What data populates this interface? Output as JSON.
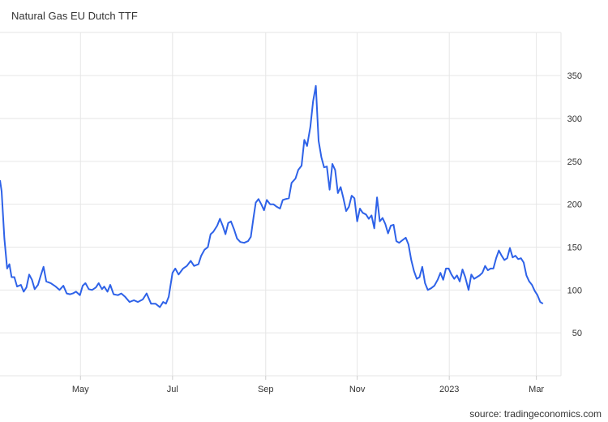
{
  "chart_data": {
    "type": "line",
    "title": "Natural Gas EU Dutch TTF",
    "xlabel": "",
    "ylabel": "",
    "source": "source: tradingeconomics.com",
    "x_range": [
      0,
      100
    ],
    "ylim": [
      0,
      400
    ],
    "y_ticks": [
      50,
      100,
      150,
      200,
      250,
      300,
      350
    ],
    "x_ticks": [
      {
        "label": "May",
        "x": 14.6
      },
      {
        "label": "Jul",
        "x": 31.3
      },
      {
        "label": "Sep",
        "x": 48.2
      },
      {
        "label": "Nov",
        "x": 64.8
      },
      {
        "label": "2023",
        "x": 81.5
      },
      {
        "label": "Mar",
        "x": 97.3
      }
    ],
    "grid": true,
    "colors": {
      "line": "#2e62e8",
      "grid": "#e6e6e6"
    },
    "series": [
      {
        "values": [
          [
            0.0,
            228
          ],
          [
            0.3,
            215
          ],
          [
            0.8,
            160
          ],
          [
            1.3,
            125
          ],
          [
            1.7,
            130
          ],
          [
            2.1,
            115
          ],
          [
            2.6,
            115
          ],
          [
            3.1,
            104
          ],
          [
            3.8,
            106
          ],
          [
            4.3,
            98
          ],
          [
            4.8,
            103
          ],
          [
            5.3,
            118
          ],
          [
            5.8,
            112
          ],
          [
            6.3,
            101
          ],
          [
            6.9,
            106
          ],
          [
            7.4,
            117
          ],
          [
            7.9,
            127
          ],
          [
            8.4,
            110
          ],
          [
            9.2,
            108
          ],
          [
            10.1,
            104
          ],
          [
            10.8,
            100
          ],
          [
            11.5,
            105
          ],
          [
            12.1,
            96
          ],
          [
            12.7,
            95
          ],
          [
            13.2,
            96
          ],
          [
            13.8,
            98
          ],
          [
            14.5,
            94
          ],
          [
            15.0,
            105
          ],
          [
            15.5,
            108
          ],
          [
            16.1,
            101
          ],
          [
            16.7,
            100
          ],
          [
            17.4,
            103
          ],
          [
            17.9,
            108
          ],
          [
            18.5,
            101
          ],
          [
            18.9,
            104
          ],
          [
            19.5,
            98
          ],
          [
            20.0,
            106
          ],
          [
            20.6,
            95
          ],
          [
            21.4,
            94
          ],
          [
            22.0,
            96
          ],
          [
            22.7,
            92
          ],
          [
            23.5,
            86
          ],
          [
            24.3,
            88
          ],
          [
            25.0,
            86
          ],
          [
            25.9,
            89
          ],
          [
            26.6,
            96
          ],
          [
            27.4,
            84
          ],
          [
            28.2,
            84
          ],
          [
            29.0,
            80
          ],
          [
            29.6,
            86
          ],
          [
            30.1,
            84
          ],
          [
            30.6,
            92
          ],
          [
            31.3,
            120
          ],
          [
            31.8,
            125
          ],
          [
            32.4,
            118
          ],
          [
            33.2,
            125
          ],
          [
            33.9,
            128
          ],
          [
            34.6,
            134
          ],
          [
            35.2,
            128
          ],
          [
            36.0,
            130
          ],
          [
            36.5,
            140
          ],
          [
            37.1,
            147
          ],
          [
            37.7,
            150
          ],
          [
            38.2,
            165
          ],
          [
            38.7,
            168
          ],
          [
            39.4,
            175
          ],
          [
            39.9,
            183
          ],
          [
            40.4,
            175
          ],
          [
            40.9,
            165
          ],
          [
            41.4,
            178
          ],
          [
            41.9,
            180
          ],
          [
            42.5,
            170
          ],
          [
            43.0,
            160
          ],
          [
            43.6,
            156
          ],
          [
            44.3,
            155
          ],
          [
            45.0,
            157
          ],
          [
            45.5,
            162
          ],
          [
            46.0,
            185
          ],
          [
            46.4,
            202
          ],
          [
            46.9,
            206
          ],
          [
            47.4,
            200
          ],
          [
            47.9,
            193
          ],
          [
            48.4,
            205
          ],
          [
            49.0,
            200
          ],
          [
            49.6,
            200
          ],
          [
            50.2,
            197
          ],
          [
            50.8,
            195
          ],
          [
            51.3,
            205
          ],
          [
            51.8,
            206
          ],
          [
            52.4,
            207
          ],
          [
            52.9,
            225
          ],
          [
            53.6,
            230
          ],
          [
            54.1,
            240
          ],
          [
            54.7,
            245
          ],
          [
            55.2,
            275
          ],
          [
            55.7,
            268
          ],
          [
            56.3,
            290
          ],
          [
            56.8,
            320
          ],
          [
            57.3,
            338
          ],
          [
            57.8,
            274
          ],
          [
            58.3,
            255
          ],
          [
            58.8,
            243
          ],
          [
            59.3,
            244
          ],
          [
            59.8,
            217
          ],
          [
            60.3,
            247
          ],
          [
            60.8,
            240
          ],
          [
            61.3,
            213
          ],
          [
            61.8,
            220
          ],
          [
            62.3,
            207
          ],
          [
            62.8,
            192
          ],
          [
            63.3,
            197
          ],
          [
            63.8,
            210
          ],
          [
            64.3,
            207
          ],
          [
            64.8,
            180
          ],
          [
            65.3,
            195
          ],
          [
            65.8,
            190
          ],
          [
            66.4,
            188
          ],
          [
            66.9,
            183
          ],
          [
            67.4,
            187
          ],
          [
            67.9,
            172
          ],
          [
            68.4,
            208
          ],
          [
            68.9,
            180
          ],
          [
            69.4,
            184
          ],
          [
            69.9,
            177
          ],
          [
            70.4,
            166
          ],
          [
            70.9,
            175
          ],
          [
            71.4,
            176
          ],
          [
            71.9,
            157
          ],
          [
            72.4,
            155
          ],
          [
            73.0,
            158
          ],
          [
            73.6,
            161
          ],
          [
            74.1,
            153
          ],
          [
            74.6,
            135
          ],
          [
            75.1,
            122
          ],
          [
            75.6,
            113
          ],
          [
            76.1,
            115
          ],
          [
            76.6,
            127
          ],
          [
            77.1,
            108
          ],
          [
            77.6,
            100
          ],
          [
            78.2,
            102
          ],
          [
            78.8,
            105
          ],
          [
            79.4,
            112
          ],
          [
            79.9,
            120
          ],
          [
            80.4,
            112
          ],
          [
            80.9,
            125
          ],
          [
            81.4,
            125
          ],
          [
            81.9,
            118
          ],
          [
            82.4,
            113
          ],
          [
            82.9,
            117
          ],
          [
            83.4,
            110
          ],
          [
            83.9,
            124
          ],
          [
            84.4,
            115
          ],
          [
            85.0,
            100
          ],
          [
            85.5,
            118
          ],
          [
            86.0,
            113
          ],
          [
            86.5,
            115
          ],
          [
            87.0,
            117
          ],
          [
            87.5,
            120
          ],
          [
            88.0,
            128
          ],
          [
            88.5,
            123
          ],
          [
            89.0,
            125
          ],
          [
            89.5,
            125
          ],
          [
            90.0,
            137
          ],
          [
            90.5,
            146
          ],
          [
            91.0,
            140
          ],
          [
            91.5,
            135
          ],
          [
            92.0,
            137
          ],
          [
            92.5,
            149
          ],
          [
            93.0,
            138
          ],
          [
            93.5,
            140
          ],
          [
            94.0,
            136
          ],
          [
            94.5,
            137
          ],
          [
            95.0,
            132
          ],
          [
            95.5,
            117
          ],
          [
            96.0,
            110
          ],
          [
            96.5,
            106
          ],
          [
            97.0,
            99
          ],
          [
            97.5,
            94
          ],
          [
            98.0,
            86
          ],
          [
            98.5,
            84
          ]
        ]
      }
    ]
  }
}
